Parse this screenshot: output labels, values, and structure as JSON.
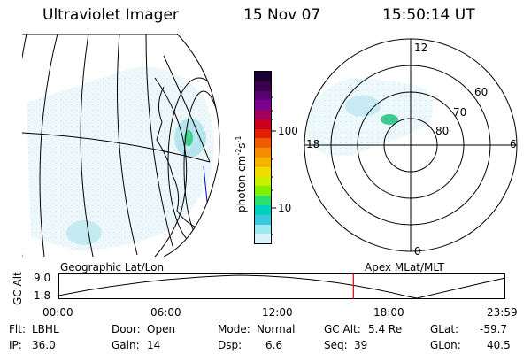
{
  "header": {
    "instrument": "Ultraviolet Imager",
    "date": "15 Nov 07",
    "time": "15:50:14 UT"
  },
  "colorbar": {
    "unit_label": "photon cm",
    "unit_exp1": "-2",
    "unit_mid": "s",
    "unit_exp2": "-1",
    "ticks": [
      "100",
      "10"
    ],
    "colors": [
      "#1a0033",
      "#3a0050",
      "#5a0070",
      "#7a0090",
      "#a00060",
      "#c8001e",
      "#e01e00",
      "#f05a00",
      "#f58c00",
      "#f5b400",
      "#f0dc00",
      "#c8f000",
      "#80f000",
      "#2ce070",
      "#00d0c0",
      "#3cc8e0",
      "#9ee8f0",
      "#d8f4f8"
    ]
  },
  "polar_plot": {
    "labels": {
      "top": "12",
      "bottom": "0",
      "left": "18",
      "right": "6"
    },
    "rings": [
      "60",
      "70",
      "80"
    ]
  },
  "timeline": {
    "ylabel": "GC Alt",
    "ymax": "9.0",
    "ymin": "1.8",
    "left_label": "Geographic Lat/Lon",
    "right_label": "Apex MLat/MLT",
    "x_ticks": [
      "00:00",
      "06:00",
      "12:00",
      "18:00",
      "23:59"
    ],
    "current_time_hours": 15.84
  },
  "info": {
    "filter_label": "Flt:",
    "filter_value": "LBHL",
    "ip_label": "IP:",
    "ip_value": "36.0",
    "door_label": "Door:",
    "door_value": "Open",
    "gain_label": "Gain:",
    "gain_value": "14",
    "mode_label": "Mode:",
    "mode_value": "Normal",
    "dsp_label": "Dsp:",
    "dsp_value": "6.6",
    "gcalt_label": "GC Alt:",
    "gcalt_value": "5.4 Re",
    "seq_label": "Seq:",
    "seq_value": "39",
    "glat_label": "GLat:",
    "glat_value": "-59.7",
    "glon_label": "GLon:",
    "glon_value": "40.5"
  }
}
